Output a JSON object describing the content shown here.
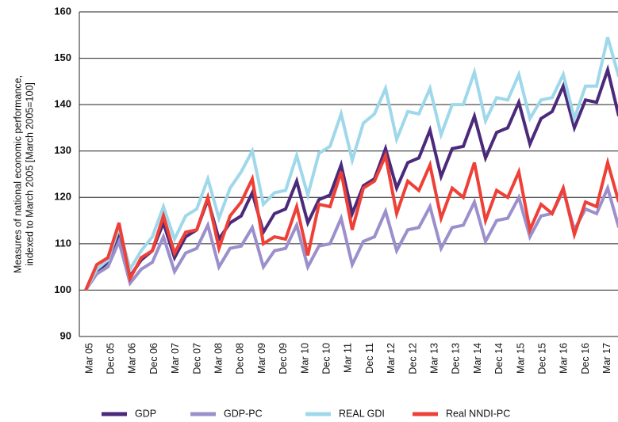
{
  "chart_data": {
    "type": "line",
    "y_label": [
      "Measures of national economic performance,",
      "indexed to March 2005 [March 2005=100]"
    ],
    "categories": [
      "Mar 05",
      null,
      "Dec 05",
      null,
      "Mar 06",
      null,
      "Dec 06",
      null,
      "Mar 07",
      null,
      "Dec 07",
      null,
      "Mar 08",
      null,
      "Dec 08",
      null,
      "Mar 09",
      null,
      "Dec 09",
      null,
      "Mar 10",
      null,
      "Dec 10",
      null,
      "Mar 11",
      null,
      "Dec 11",
      null,
      "Mar 12",
      null,
      "Dec 12",
      null,
      "Mar 13",
      null,
      "Dec 13",
      null,
      "Mar 14",
      null,
      "Dec 14",
      null,
      "Mar 15",
      null,
      "Dec 15",
      null,
      "Mar 16",
      null,
      "Dec 16",
      null,
      "Mar 17"
    ],
    "series": [
      {
        "name": "GDP",
        "color": "#4b2a7b",
        "values": [
          100,
          104,
          106,
          111.5,
          103,
          106.5,
          108.5,
          114.5,
          107,
          111.5,
          113,
          119.5,
          111,
          114.5,
          116,
          121,
          112.5,
          116.5,
          117.5,
          123.5,
          114.5,
          119.5,
          120.5,
          127,
          116.5,
          122.5,
          124,
          130.5,
          122,
          127.5,
          128.5,
          134.5,
          124.5,
          130.5,
          131,
          137.5,
          128.5,
          134,
          135,
          140.5,
          131.5,
          137,
          138.5,
          144,
          135,
          141,
          140.5,
          147.5,
          137.5
        ]
      },
      {
        "name": "GDP-PC",
        "color": "#9b8fcc",
        "values": [
          100,
          103.5,
          105,
          110.5,
          101.5,
          104.5,
          106,
          111.5,
          104,
          108,
          109,
          114,
          105,
          109,
          109.5,
          113.5,
          105,
          108.5,
          109,
          114,
          105,
          109.5,
          110,
          115.5,
          105.5,
          110.5,
          111.5,
          117,
          108.5,
          113,
          113.5,
          118,
          109,
          113.5,
          114,
          119,
          110.5,
          115,
          115.5,
          120,
          111.5,
          116,
          116.5,
          121.5,
          113,
          117.5,
          116.5,
          122,
          113.5
        ]
      },
      {
        "name": "REAL GDI",
        "color": "#9fd8ea",
        "values": [
          100,
          104.5,
          106.5,
          113.5,
          104.5,
          108.5,
          111.5,
          118,
          111,
          116,
          117.5,
          124,
          115.5,
          122,
          125.5,
          130,
          118.5,
          121,
          121.5,
          129,
          120.5,
          129.5,
          131,
          138,
          128,
          136,
          138,
          143.5,
          132.5,
          138.5,
          138,
          143.5,
          133.5,
          140,
          140,
          147,
          136.5,
          141.5,
          141,
          146.5,
          137,
          141,
          141.5,
          146.5,
          137,
          144,
          144,
          154.5,
          146
        ]
      },
      {
        "name": "Real NNDI-PC",
        "color": "#ee4036",
        "values": [
          100,
          105.5,
          107,
          114.5,
          102.5,
          107,
          108.5,
          116,
          108,
          112.5,
          113,
          120,
          109,
          116,
          119,
          124,
          110,
          111.5,
          111,
          118,
          107.5,
          118.5,
          118,
          125.5,
          113,
          122,
          123.5,
          129,
          116.5,
          123.5,
          121.5,
          127,
          115.5,
          122,
          120,
          127.5,
          115,
          121.5,
          120,
          125.5,
          113,
          118.5,
          116.5,
          122,
          112,
          119,
          118,
          127.5,
          119
        ]
      }
    ],
    "ylim": [
      90,
      160
    ],
    "yticks": [
      90,
      100,
      110,
      120,
      130,
      140,
      150,
      160
    ],
    "grid": true
  }
}
